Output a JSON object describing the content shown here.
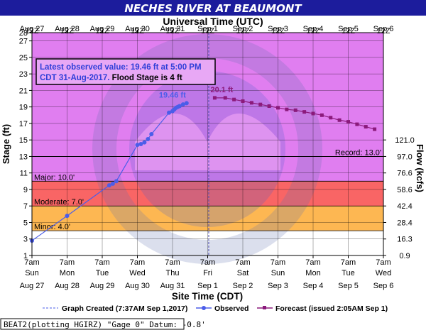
{
  "chart_data": {
    "type": "line",
    "title": "NECHES RIVER AT BEAUMONT",
    "top_axis_label": "Universal Time (UTC)",
    "xlabel": "Site Time (CDT)",
    "ylabel": "Stage (ft)",
    "ylabel_right": "Flow (kcfs)",
    "ylim": [
      1,
      28
    ],
    "yticks": [
      1,
      3,
      5,
      7,
      9,
      11,
      13,
      15,
      17,
      19,
      21,
      23,
      25,
      27,
      28
    ],
    "right_ticks": [
      {
        "stage": 1,
        "label": "0.9"
      },
      {
        "stage": 3,
        "label": "16.3"
      },
      {
        "stage": 5,
        "label": "28.4"
      },
      {
        "stage": 7,
        "label": "42.4"
      },
      {
        "stage": 9,
        "label": "58.6"
      },
      {
        "stage": 11,
        "label": "76.6"
      },
      {
        "stage": 13,
        "label": "97.0"
      },
      {
        "stage": 15,
        "label": "121.0"
      }
    ],
    "x_days": [
      {
        "top_time": "12Z",
        "top_date": "Aug 27",
        "bottom_time": "7am",
        "bottom_day": "Sun",
        "bottom_date": "Aug 27"
      },
      {
        "top_time": "12Z",
        "top_date": "Aug 28",
        "bottom_time": "7am",
        "bottom_day": "Mon",
        "bottom_date": "Aug 28"
      },
      {
        "top_time": "12Z",
        "top_date": "Aug 29",
        "bottom_time": "7am",
        "bottom_day": "Tue",
        "bottom_date": "Aug 29"
      },
      {
        "top_time": "12Z",
        "top_date": "Aug 30",
        "bottom_time": "7am",
        "bottom_day": "Wed",
        "bottom_date": "Aug 30"
      },
      {
        "top_time": "12Z",
        "top_date": "Aug 31",
        "bottom_time": "7am",
        "bottom_day": "Thu",
        "bottom_date": "Aug 31"
      },
      {
        "top_time": "12Z",
        "top_date": "Sep 1",
        "bottom_time": "7am",
        "bottom_day": "Fri",
        "bottom_date": "Sep 1"
      },
      {
        "top_time": "12Z",
        "top_date": "Sep 2",
        "bottom_time": "7am",
        "bottom_day": "Sat",
        "bottom_date": "Sep 2"
      },
      {
        "top_time": "12Z",
        "top_date": "Sep 3",
        "bottom_time": "7am",
        "bottom_day": "Sun",
        "bottom_date": "Sep 3"
      },
      {
        "top_time": "12Z",
        "top_date": "Sep 4",
        "bottom_time": "7am",
        "bottom_day": "Mon",
        "bottom_date": "Sep 4"
      },
      {
        "top_time": "12Z",
        "top_date": "Sep 5",
        "bottom_time": "7am",
        "bottom_day": "Tue",
        "bottom_date": "Sep 5"
      },
      {
        "top_time": "12Z",
        "top_date": "Sep 6",
        "bottom_time": "7am",
        "bottom_day": "Wed",
        "bottom_date": "Sep 6"
      }
    ],
    "flood_categories": [
      {
        "label": "Minor: 4.0'",
        "from": 4,
        "to": 7,
        "color": "#fdb752"
      },
      {
        "label": "Moderate: 7.0'",
        "from": 7,
        "to": 10,
        "color": "#f96565"
      },
      {
        "label": "Major: 10.0'",
        "from": 10,
        "to": 28,
        "color": "#e07ef0"
      }
    ],
    "below_flood_color": "#ffffff",
    "record": {
      "label": "Record: 13.0'",
      "stage": 13
    },
    "graph_created_day": 5.03,
    "series": [
      {
        "name": "Observed",
        "color": "#4b5de9",
        "x": [
          0,
          1,
          2.2,
          2.3,
          2.4,
          3.0,
          3.1,
          3.2,
          3.3,
          3.4,
          3.9,
          4.0,
          4.05,
          4.1,
          4.15,
          4.2,
          4.3,
          4.4
        ],
        "y": [
          2.8,
          5.8,
          9.5,
          9.7,
          10.0,
          14.4,
          14.5,
          14.7,
          15.1,
          15.7,
          18.3,
          18.5,
          18.7,
          18.9,
          19.0,
          19.1,
          19.3,
          19.46
        ]
      },
      {
        "name": "Forecast (issued 2:05AM Sep 1)",
        "color": "#8b1a7c",
        "x": [
          5.2,
          5.5,
          5.75,
          6.0,
          6.25,
          6.5,
          6.75,
          7.0,
          7.25,
          7.5,
          7.75,
          8.0,
          8.25,
          8.5,
          8.75,
          9.0,
          9.25,
          9.5,
          9.75
        ],
        "y": [
          20.1,
          20.1,
          19.9,
          19.7,
          19.5,
          19.3,
          19.1,
          18.9,
          18.7,
          18.6,
          18.4,
          18.2,
          18.0,
          17.7,
          17.4,
          17.2,
          16.9,
          16.6,
          16.3
        ]
      }
    ],
    "point_labels": [
      {
        "text": "19.46 ft",
        "x": 4.4,
        "y": 19.46,
        "color": "#4b5de9"
      },
      {
        "text": "20.1 ft",
        "x": 5.2,
        "y": 20.1,
        "color": "#8b1a7c"
      }
    ],
    "info_box": {
      "line1": "Latest observed value: 19.46 ft at 5:00 PM",
      "line2a": "CDT 31-Aug-2017.",
      "line2b": " Flood Stage is 4 ft"
    },
    "legend": {
      "created": "Graph Created (7:37AM Sep 1,2017)",
      "observed": "Observed",
      "forecast": "Forecast (issued 2:05AM Sep 1)"
    },
    "footer": "BEAT2(plotting HGIRZ) \"Gage 0\" Datum: -0.8'"
  }
}
